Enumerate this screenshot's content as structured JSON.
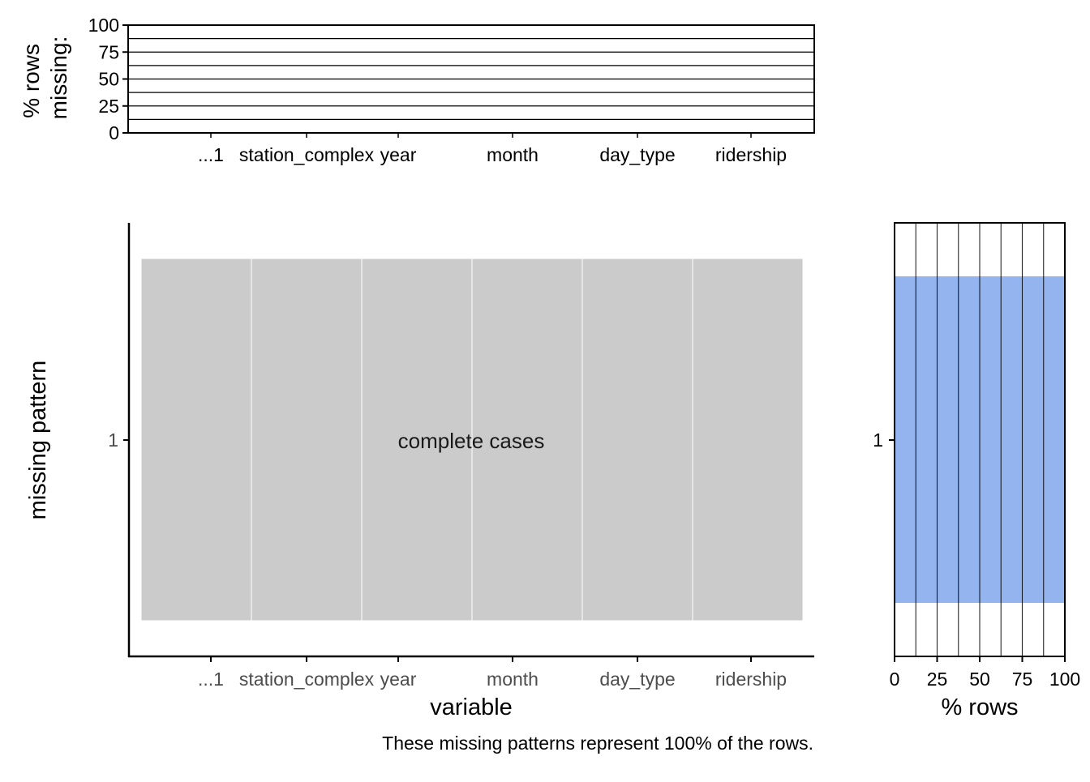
{
  "chart_data": [
    {
      "id": "top",
      "type": "bar",
      "ylabel_lines": [
        "% rows",
        "missing:"
      ],
      "ylim": [
        0,
        100
      ],
      "yticks": [
        "0",
        "25",
        "50",
        "75",
        "100"
      ],
      "grid": true,
      "categories": [
        "...1",
        "station_complex",
        "year",
        "month",
        "day_type",
        "ridership"
      ],
      "values": [
        0,
        0,
        0,
        0,
        0,
        0
      ]
    },
    {
      "id": "main",
      "type": "heatmap",
      "xlabel": "variable",
      "ylabel": "missing pattern",
      "categories": [
        "...1",
        "station_complex",
        "year",
        "month",
        "day_type",
        "ridership"
      ],
      "patterns": [
        "1"
      ],
      "cells": [
        [
          0,
          0,
          0,
          0,
          0,
          0
        ]
      ],
      "tile_color": "#cbcbcb",
      "annotation": "complete cases"
    },
    {
      "id": "right",
      "type": "bar",
      "orientation": "horizontal",
      "xlabel": "% rows",
      "xlim": [
        0,
        100
      ],
      "xticks": [
        "0",
        "25",
        "50",
        "75",
        "100"
      ],
      "grid": true,
      "categories": [
        "1"
      ],
      "values": [
        100
      ],
      "bar_color": "#94b4f0"
    }
  ],
  "caption": "These missing patterns represent 100% of the rows."
}
